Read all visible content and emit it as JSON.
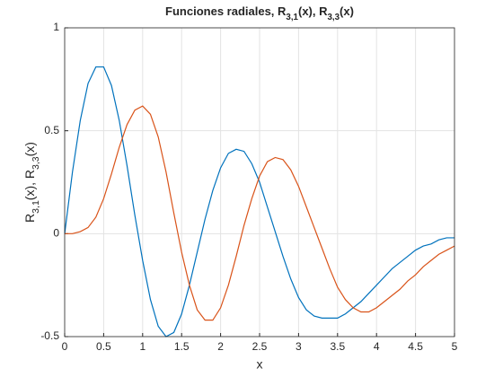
{
  "chart_data": {
    "type": "line",
    "title": [
      "Funciones radiales, R",
      "3,1",
      "(x), R",
      "3,3",
      "(x)"
    ],
    "xlabel": "x",
    "ylabel": [
      "R",
      "3,1",
      "(x), R",
      "3,3",
      "(x)"
    ],
    "x": [
      0,
      0.1,
      0.2,
      0.3,
      0.4,
      0.5,
      0.6,
      0.7,
      0.8,
      0.9,
      1,
      1.1,
      1.2,
      1.3,
      1.4,
      1.5,
      1.6,
      1.7,
      1.8,
      1.9,
      2,
      2.1,
      2.2,
      2.3,
      2.4,
      2.5,
      2.6,
      2.7,
      2.8,
      2.9,
      3,
      3.1,
      3.2,
      3.3,
      3.4,
      3.5,
      3.6,
      3.7,
      3.8,
      3.9,
      4,
      4.1,
      4.2,
      4.3,
      4.4,
      4.5,
      4.6,
      4.7,
      4.8,
      4.9,
      5
    ],
    "series": [
      {
        "color": "#0072bd",
        "values": [
          0,
          0.3,
          0.55,
          0.73,
          0.81,
          0.81,
          0.72,
          0.55,
          0.33,
          0.09,
          -0.13,
          -0.32,
          -0.45,
          -0.5,
          -0.48,
          -0.39,
          -0.25,
          -0.09,
          0.07,
          0.21,
          0.32,
          0.39,
          0.41,
          0.4,
          0.34,
          0.25,
          0.13,
          0.01,
          -0.11,
          -0.22,
          -0.31,
          -0.37,
          -0.4,
          -0.41,
          -0.41,
          -0.41,
          -0.39,
          -0.36,
          -0.33,
          -0.29,
          -0.25,
          -0.21,
          -0.17,
          -0.14,
          -0.11,
          -0.08,
          -0.06,
          -0.05,
          -0.03,
          -0.02,
          -0.02
        ]
      },
      {
        "color": "#d95319",
        "values": [
          0,
          0,
          0.01,
          0.03,
          0.08,
          0.17,
          0.29,
          0.42,
          0.53,
          0.6,
          0.62,
          0.58,
          0.47,
          0.3,
          0.1,
          -0.09,
          -0.25,
          -0.37,
          -0.42,
          -0.42,
          -0.36,
          -0.25,
          -0.11,
          0.04,
          0.17,
          0.28,
          0.35,
          0.37,
          0.36,
          0.31,
          0.23,
          0.13,
          0.03,
          -0.07,
          -0.17,
          -0.26,
          -0.32,
          -0.36,
          -0.38,
          -0.38,
          -0.36,
          -0.33,
          -0.3,
          -0.27,
          -0.23,
          -0.2,
          -0.16,
          -0.13,
          -0.1,
          -0.08,
          -0.06
        ]
      }
    ],
    "xlim": [
      0,
      5
    ],
    "xticks": [
      0,
      0.5,
      1,
      1.5,
      2,
      2.5,
      3,
      3.5,
      4,
      4.5,
      5
    ],
    "ylim": [
      -0.5,
      1
    ],
    "yticks": [
      -0.5,
      0,
      0.5,
      1
    ],
    "grid": true
  }
}
